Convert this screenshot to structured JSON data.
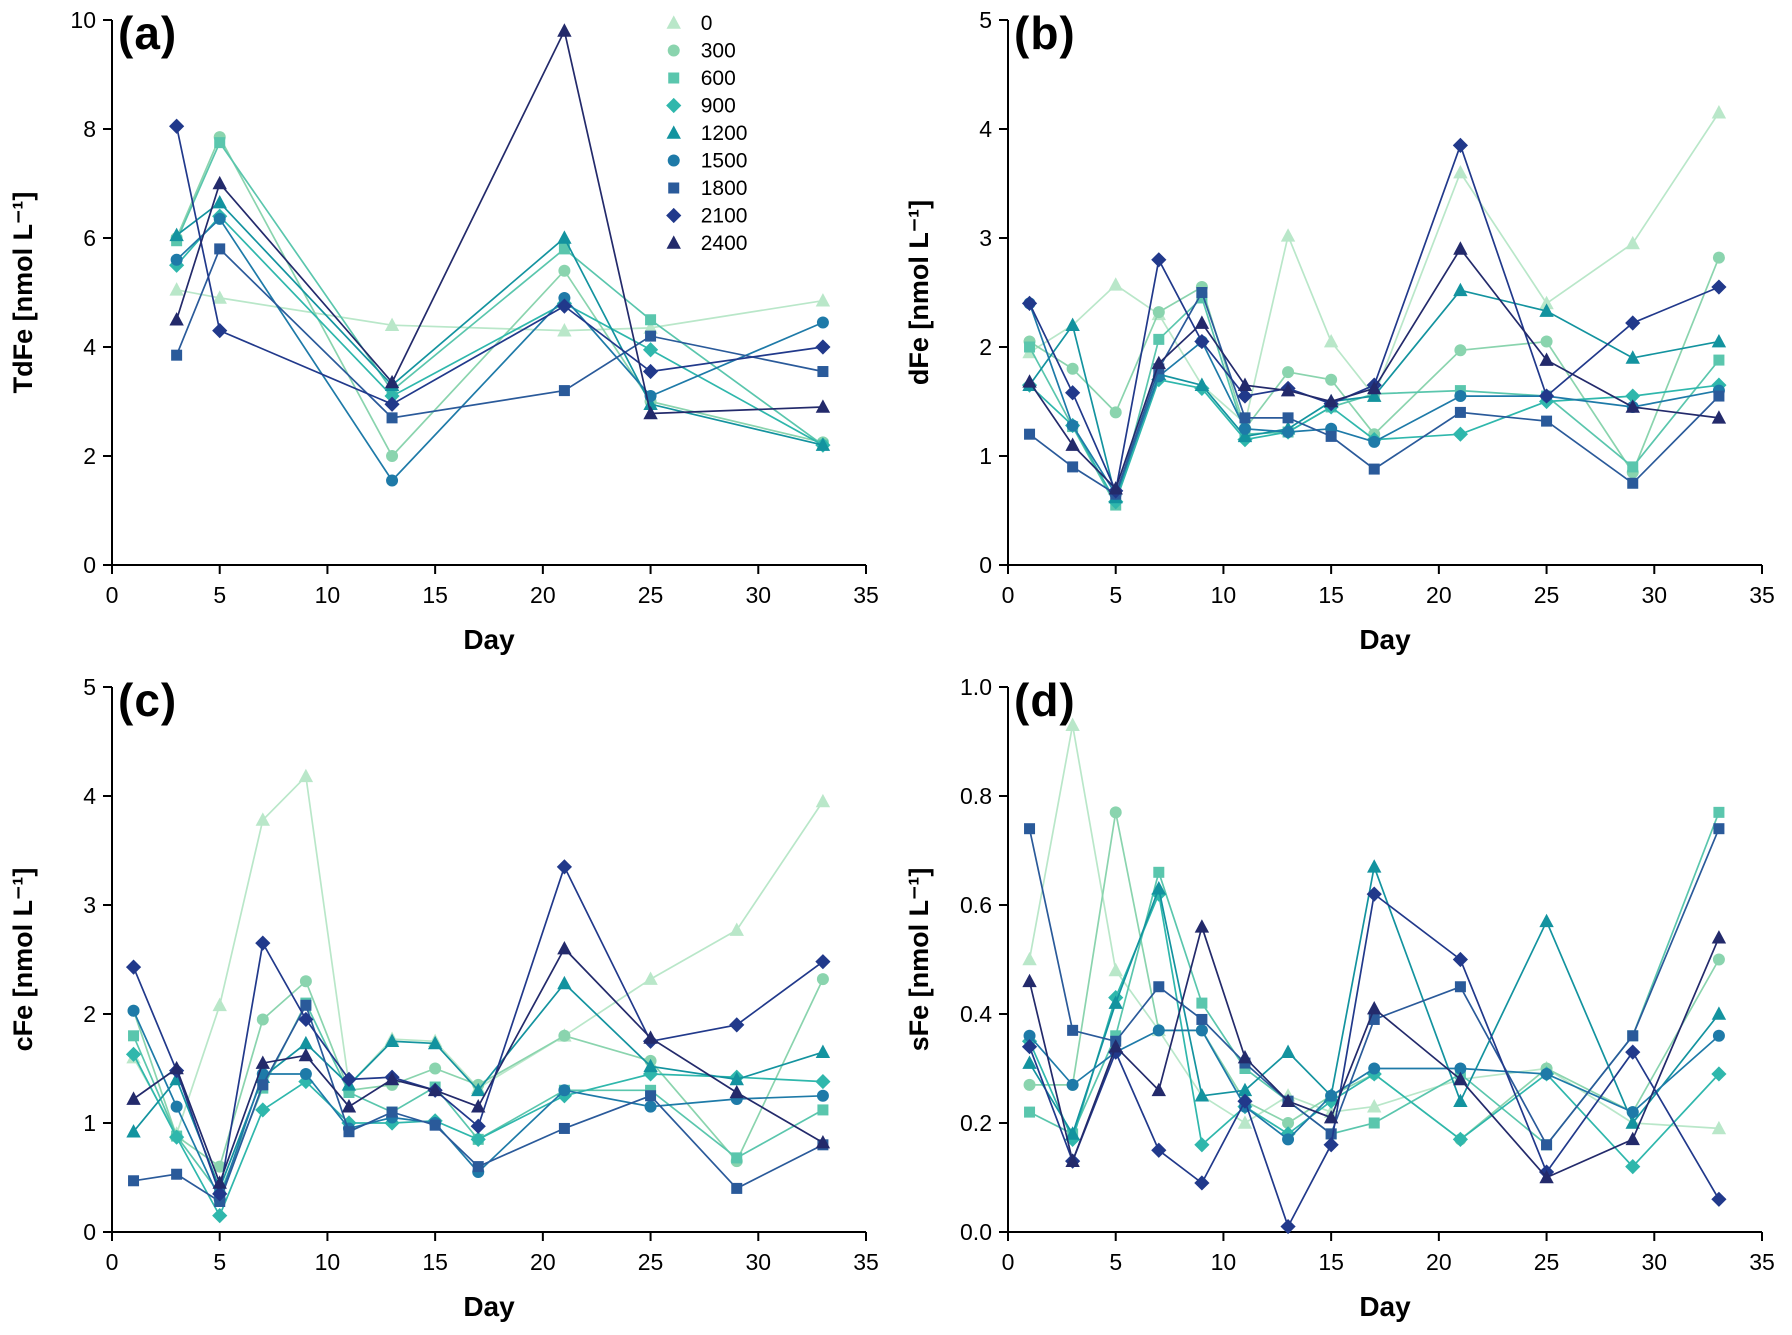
{
  "page": {
    "background": "#ffffff"
  },
  "series_styles": [
    {
      "name": "0",
      "color": "#b9e7c9",
      "marker": "triangle"
    },
    {
      "name": "300",
      "color": "#8ad4ae",
      "marker": "circle"
    },
    {
      "name": "600",
      "color": "#5ac6ad",
      "marker": "square"
    },
    {
      "name": "900",
      "color": "#2fb7ac",
      "marker": "diamond"
    },
    {
      "name": "1200",
      "color": "#13939f",
      "marker": "triangle"
    },
    {
      "name": "1500",
      "color": "#1e7aa8",
      "marker": "circle"
    },
    {
      "name": "1800",
      "color": "#2a5a9a",
      "marker": "square"
    },
    {
      "name": "2100",
      "color": "#21398b",
      "marker": "diamond"
    },
    {
      "name": "2400",
      "color": "#232a6b",
      "marker": "triangle"
    }
  ],
  "chart_data": [
    {
      "panel_label": "(a)",
      "type": "line",
      "xlabel": "Day",
      "ylabel": "TdFe [nmol L⁻¹]",
      "xlim": [
        0,
        35
      ],
      "ylim": [
        0,
        10
      ],
      "xticks": [
        0,
        5,
        10,
        15,
        20,
        25,
        30,
        35
      ],
      "xtick_labels": [
        "0",
        "5",
        "10",
        "15",
        "20",
        "25",
        "30",
        "35"
      ],
      "yticks": [
        0,
        2,
        4,
        6,
        8,
        10
      ],
      "ytick_labels": [
        "0",
        "2",
        "4",
        "6",
        "8",
        "10"
      ],
      "x": [
        3,
        5,
        13,
        21,
        25,
        33
      ],
      "show_legend": true,
      "legend_position": "top-right-inside",
      "grid": false,
      "series": [
        {
          "name": "0",
          "values": [
            5.05,
            4.9,
            4.4,
            4.3,
            4.35,
            4.85
          ]
        },
        {
          "name": "300",
          "values": [
            6.0,
            7.85,
            2.0,
            5.4,
            3.0,
            2.25
          ]
        },
        {
          "name": "600",
          "values": [
            5.95,
            7.75,
            3.2,
            5.8,
            4.5,
            2.2
          ]
        },
        {
          "name": "900",
          "values": [
            5.5,
            6.4,
            3.1,
            4.8,
            3.95,
            2.2
          ]
        },
        {
          "name": "1200",
          "values": [
            6.05,
            6.65,
            3.3,
            6.0,
            2.95,
            2.2
          ]
        },
        {
          "name": "1500",
          "values": [
            5.6,
            6.35,
            1.55,
            4.9,
            3.1,
            4.45
          ]
        },
        {
          "name": "1800",
          "values": [
            3.85,
            5.8,
            2.7,
            3.2,
            4.2,
            3.55
          ]
        },
        {
          "name": "2100",
          "values": [
            8.05,
            4.3,
            2.95,
            4.75,
            3.55,
            4.0
          ]
        },
        {
          "name": "2400",
          "values": [
            4.5,
            7.0,
            3.35,
            9.8,
            2.78,
            2.9
          ]
        }
      ]
    },
    {
      "panel_label": "(b)",
      "type": "line",
      "xlabel": "Day",
      "ylabel": "dFe [nmol L⁻¹]",
      "xlim": [
        0,
        35
      ],
      "ylim": [
        0,
        5
      ],
      "xticks": [
        0,
        5,
        10,
        15,
        20,
        25,
        30,
        35
      ],
      "xtick_labels": [
        "0",
        "5",
        "10",
        "15",
        "20",
        "25",
        "30",
        "35"
      ],
      "yticks": [
        0,
        1,
        2,
        3,
        4,
        5
      ],
      "ytick_labels": [
        "0",
        "1",
        "2",
        "3",
        "4",
        "5"
      ],
      "x": [
        1,
        3,
        5,
        7,
        9,
        11,
        13,
        15,
        17,
        21,
        25,
        29,
        33
      ],
      "show_legend": false,
      "grid": false,
      "series": [
        {
          "name": "0",
          "values": [
            1.95,
            2.2,
            2.57,
            2.3,
            1.65,
            1.3,
            3.02,
            2.05,
            1.55,
            3.6,
            2.4,
            2.95,
            4.15
          ]
        },
        {
          "name": "300",
          "values": [
            2.05,
            1.8,
            1.4,
            2.32,
            2.55,
            1.25,
            1.77,
            1.7,
            1.2,
            1.97,
            2.05,
            0.85,
            2.82
          ]
        },
        {
          "name": "600",
          "values": [
            2.0,
            1.27,
            0.55,
            2.07,
            2.45,
            1.2,
            1.22,
            1.45,
            1.57,
            1.6,
            1.55,
            0.9,
            1.88
          ]
        },
        {
          "name": "900",
          "values": [
            1.65,
            1.28,
            0.58,
            1.7,
            1.62,
            1.15,
            1.22,
            1.45,
            1.15,
            1.2,
            1.5,
            1.55,
            1.65
          ]
        },
        {
          "name": "1200",
          "values": [
            1.65,
            2.2,
            0.62,
            1.75,
            1.65,
            1.18,
            1.25,
            1.5,
            1.55,
            2.52,
            2.33,
            1.9,
            2.05
          ]
        },
        {
          "name": "1500",
          "values": [
            2.4,
            1.28,
            0.65,
            1.73,
            2.05,
            1.25,
            1.22,
            1.25,
            1.13,
            1.55,
            1.55,
            1.45,
            1.6
          ]
        },
        {
          "name": "1800",
          "values": [
            1.2,
            0.9,
            0.65,
            1.8,
            2.5,
            1.35,
            1.35,
            1.18,
            0.88,
            1.4,
            1.32,
            0.75,
            1.55
          ]
        },
        {
          "name": "2100",
          "values": [
            2.4,
            1.58,
            0.68,
            2.8,
            2.05,
            1.55,
            1.62,
            1.48,
            1.65,
            3.85,
            1.55,
            2.22,
            2.55
          ]
        },
        {
          "name": "2400",
          "values": [
            1.68,
            1.1,
            0.7,
            1.85,
            2.22,
            1.65,
            1.6,
            1.5,
            1.62,
            2.9,
            1.88,
            1.45,
            1.35
          ]
        }
      ]
    },
    {
      "panel_label": "(c)",
      "type": "line",
      "xlabel": "Day",
      "ylabel": "cFe [nmol L⁻¹]",
      "xlim": [
        0,
        35
      ],
      "ylim": [
        0,
        5
      ],
      "xticks": [
        0,
        5,
        10,
        15,
        20,
        25,
        30,
        35
      ],
      "xtick_labels": [
        "0",
        "5",
        "10",
        "15",
        "20",
        "25",
        "30",
        "35"
      ],
      "yticks": [
        0,
        1,
        2,
        3,
        4,
        5
      ],
      "ytick_labels": [
        "0",
        "1",
        "2",
        "3",
        "4",
        "5"
      ],
      "x": [
        1,
        3,
        5,
        7,
        9,
        11,
        13,
        15,
        17,
        21,
        25,
        29,
        33
      ],
      "show_legend": false,
      "grid": false,
      "series": [
        {
          "name": "0",
          "values": [
            1.6,
            0.9,
            2.08,
            3.78,
            4.18,
            1.35,
            1.77,
            1.75,
            1.32,
            1.8,
            2.32,
            2.77,
            3.95
          ]
        },
        {
          "name": "300",
          "values": [
            2.03,
            0.88,
            0.6,
            1.95,
            2.3,
            1.3,
            1.35,
            1.5,
            1.35,
            1.8,
            1.57,
            0.65,
            2.32
          ]
        },
        {
          "name": "600",
          "values": [
            1.8,
            0.88,
            0.35,
            1.32,
            2.1,
            1.28,
            1.1,
            1.33,
            0.85,
            1.3,
            1.3,
            0.68,
            1.12
          ]
        },
        {
          "name": "900",
          "values": [
            1.63,
            0.87,
            0.15,
            1.12,
            1.38,
            1.0,
            1.0,
            1.02,
            0.85,
            1.25,
            1.45,
            1.42,
            1.38
          ]
        },
        {
          "name": "1200",
          "values": [
            0.92,
            1.4,
            0.4,
            1.42,
            1.73,
            1.35,
            1.75,
            1.73,
            1.3,
            2.28,
            1.52,
            1.4,
            1.65
          ]
        },
        {
          "name": "1500",
          "values": [
            2.03,
            1.15,
            0.3,
            1.45,
            1.45,
            0.95,
            1.05,
            1.0,
            0.55,
            1.3,
            1.15,
            1.22,
            1.25
          ]
        },
        {
          "name": "1800",
          "values": [
            0.47,
            0.53,
            0.28,
            1.35,
            2.08,
            0.92,
            1.1,
            0.98,
            0.6,
            0.95,
            1.25,
            0.4,
            0.8
          ]
        },
        {
          "name": "2100",
          "values": [
            2.43,
            1.48,
            0.35,
            2.65,
            1.95,
            1.4,
            1.42,
            1.3,
            0.97,
            3.35,
            1.75,
            1.9,
            2.48
          ]
        },
        {
          "name": "2400",
          "values": [
            1.22,
            1.5,
            0.45,
            1.55,
            1.62,
            1.15,
            1.4,
            1.3,
            1.15,
            2.6,
            1.78,
            1.28,
            0.82
          ]
        }
      ]
    },
    {
      "panel_label": "(d)",
      "type": "line",
      "xlabel": "Day",
      "ylabel": "sFe [nmol L⁻¹]",
      "xlim": [
        0,
        35
      ],
      "ylim": [
        0,
        1.0
      ],
      "xticks": [
        0,
        5,
        10,
        15,
        20,
        25,
        30,
        35
      ],
      "xtick_labels": [
        "0",
        "5",
        "10",
        "15",
        "20",
        "25",
        "30",
        "35"
      ],
      "yticks": [
        0,
        0.2,
        0.4,
        0.6,
        0.8,
        1.0
      ],
      "ytick_labels": [
        "0.0",
        "0.2",
        "0.4",
        "0.6",
        "0.8",
        "1.0"
      ],
      "x": [
        1,
        3,
        5,
        7,
        9,
        11,
        13,
        15,
        17,
        21,
        25,
        29,
        33
      ],
      "show_legend": false,
      "grid": false,
      "series": [
        {
          "name": "0",
          "values": [
            0.5,
            0.93,
            0.48,
            0.37,
            0.25,
            0.2,
            0.25,
            0.22,
            0.23,
            0.28,
            0.3,
            0.2,
            0.19
          ]
        },
        {
          "name": "300",
          "values": [
            0.27,
            0.27,
            0.77,
            0.37,
            0.37,
            0.24,
            0.2,
            0.25,
            0.29,
            0.17,
            0.3,
            0.22,
            0.5
          ]
        },
        {
          "name": "600",
          "values": [
            0.22,
            0.18,
            0.36,
            0.66,
            0.42,
            0.3,
            0.24,
            0.18,
            0.2,
            0.29,
            0.16,
            0.36,
            0.77
          ]
        },
        {
          "name": "900",
          "values": [
            0.35,
            0.17,
            0.43,
            0.62,
            0.16,
            0.23,
            0.18,
            0.24,
            0.29,
            0.17,
            0.29,
            0.12,
            0.29
          ]
        },
        {
          "name": "1200",
          "values": [
            0.31,
            0.18,
            0.42,
            0.63,
            0.25,
            0.26,
            0.33,
            0.25,
            0.67,
            0.24,
            0.57,
            0.2,
            0.4
          ]
        },
        {
          "name": "1500",
          "values": [
            0.36,
            0.27,
            0.33,
            0.37,
            0.37,
            0.23,
            0.17,
            0.25,
            0.3,
            0.3,
            0.29,
            0.22,
            0.36
          ]
        },
        {
          "name": "1800",
          "values": [
            0.74,
            0.37,
            0.35,
            0.45,
            0.39,
            0.31,
            0.24,
            0.18,
            0.39,
            0.45,
            0.16,
            0.36,
            0.74
          ]
        },
        {
          "name": "2100",
          "values": [
            0.34,
            0.13,
            0.33,
            0.15,
            0.09,
            0.24,
            0.01,
            0.16,
            0.62,
            0.5,
            0.11,
            0.33,
            0.06
          ]
        },
        {
          "name": "2400",
          "values": [
            0.46,
            0.13,
            0.34,
            0.26,
            0.56,
            0.32,
            0.24,
            0.21,
            0.41,
            0.28,
            0.1,
            0.17,
            0.54
          ]
        }
      ]
    }
  ]
}
